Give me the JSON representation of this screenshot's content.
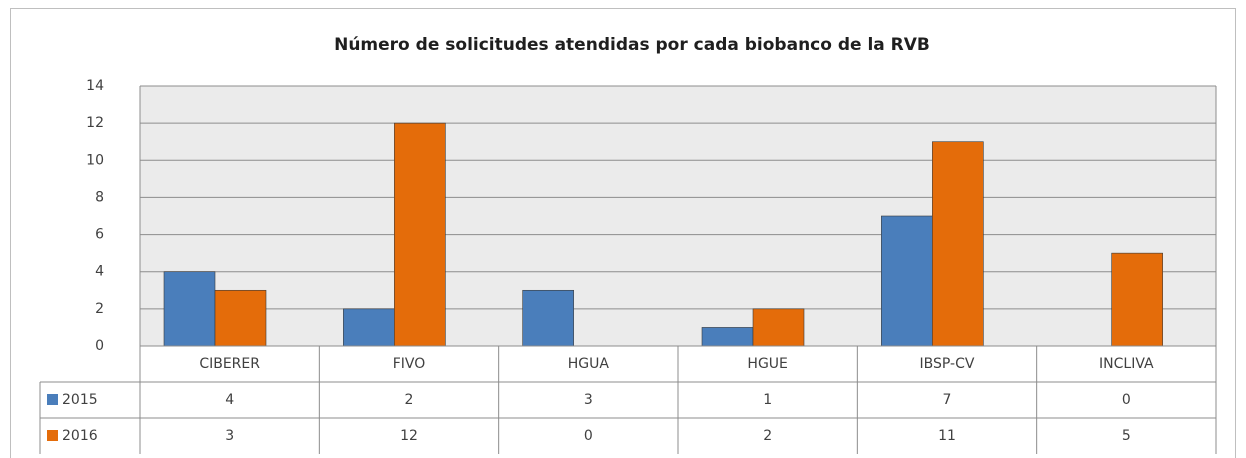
{
  "chart_data": {
    "type": "bar",
    "title": "Número de solicitudes atendidas por cada biobanco de la RVB",
    "categories": [
      "CIBERER",
      "FIVO",
      "HGUA",
      "HGUE",
      "IBSP-CV",
      "INCLIVA"
    ],
    "series": [
      {
        "name": "2015",
        "color": "#4a7ebb",
        "values": [
          4,
          2,
          3,
          1,
          7,
          0
        ]
      },
      {
        "name": "2016",
        "color": "#e46c0a",
        "values": [
          3,
          12,
          0,
          2,
          11,
          5
        ]
      }
    ],
    "ylim": [
      0,
      14
    ],
    "yticks": [
      0,
      2,
      4,
      6,
      8,
      10,
      12,
      14
    ],
    "grid": true,
    "data_table": true
  }
}
